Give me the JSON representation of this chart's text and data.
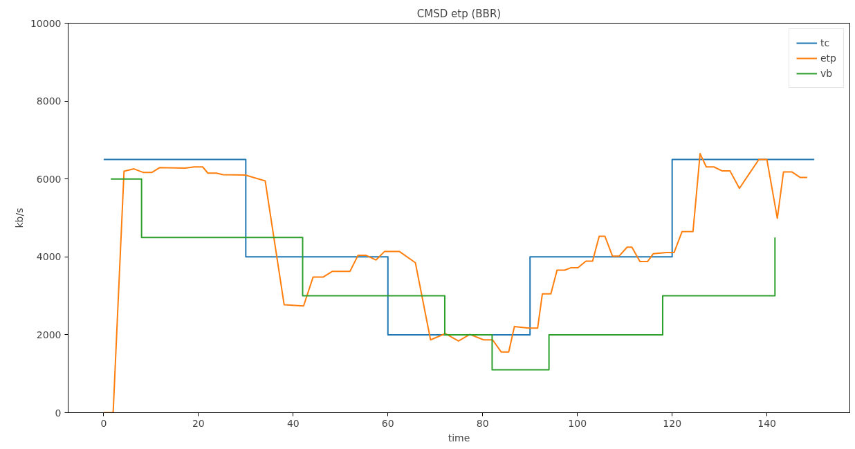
{
  "chart_data": {
    "type": "line",
    "title": "CMSD etp (BBR)",
    "xlabel": "time",
    "ylabel": "kb/s",
    "xlim": [
      -7.5,
      157.5
    ],
    "ylim": [
      0,
      10000
    ],
    "xticks": [
      0,
      20,
      40,
      60,
      80,
      100,
      120,
      140
    ],
    "yticks": [
      0,
      2000,
      4000,
      6000,
      8000,
      10000
    ],
    "grid": false,
    "legend": "top right",
    "line_style": "solid",
    "marker": "none",
    "series": [
      {
        "name": "tc",
        "type": "step",
        "color": "#1f77b4",
        "x": [
          0,
          30,
          60,
          90,
          120,
          150
        ],
        "values": [
          6500,
          4000,
          2000,
          4000,
          6500,
          6500
        ]
      },
      {
        "name": "etp",
        "color": "#ff7f0e",
        "x": [
          0,
          2,
          4.3,
          6.4,
          8.3,
          10.2,
          11.8,
          17.2,
          19.1,
          20.9,
          22,
          23.8,
          25.2,
          29.9,
          34.1,
          38.1,
          42.2,
          44.2,
          46.3,
          48.3,
          52,
          53.7,
          55.4,
          57.5,
          59.3,
          62.4,
          65.8,
          69,
          72.1,
          74.9,
          77.3,
          80.2,
          82.1,
          83.9,
          85.5,
          86.7,
          89.9,
          91.6,
          92.6,
          94.4,
          95.7,
          97.3,
          98.6,
          100.1,
          101.8,
          103.2,
          104.6,
          105.8,
          107.4,
          108.8,
          110.5,
          111.5,
          113.2,
          114.8,
          116,
          118.8,
          120.4,
          122.1,
          124.4,
          125.9,
          127.2,
          128.8,
          130.5,
          132.2,
          134.2,
          136.3,
          138.3,
          140,
          142.2,
          143.5,
          145.3,
          147,
          148.5
        ],
        "values": [
          0,
          0,
          6200,
          6260,
          6170,
          6170,
          6290,
          6280,
          6310,
          6310,
          6150,
          6150,
          6110,
          6100,
          5950,
          2770,
          2740,
          3480,
          3480,
          3630,
          3630,
          4040,
          4040,
          3920,
          4140,
          4140,
          3850,
          1870,
          2030,
          1840,
          2010,
          1870,
          1870,
          1560,
          1560,
          2210,
          2170,
          2170,
          3050,
          3050,
          3660,
          3660,
          3720,
          3720,
          3890,
          3890,
          4530,
          4530,
          4020,
          4020,
          4250,
          4250,
          3880,
          3880,
          4080,
          4110,
          4110,
          4650,
          4650,
          6650,
          6310,
          6310,
          6210,
          6210,
          5760,
          6140,
          6500,
          6500,
          4990,
          6180,
          6180,
          6040,
          6040
        ]
      },
      {
        "name": "vb",
        "type": "step",
        "color": "#2ca02c",
        "x": [
          1.5,
          8,
          42,
          72,
          82,
          94,
          118,
          141.7
        ],
        "values": [
          6000,
          4500,
          3000,
          2000,
          1100,
          2000,
          3000,
          4500
        ]
      }
    ]
  }
}
